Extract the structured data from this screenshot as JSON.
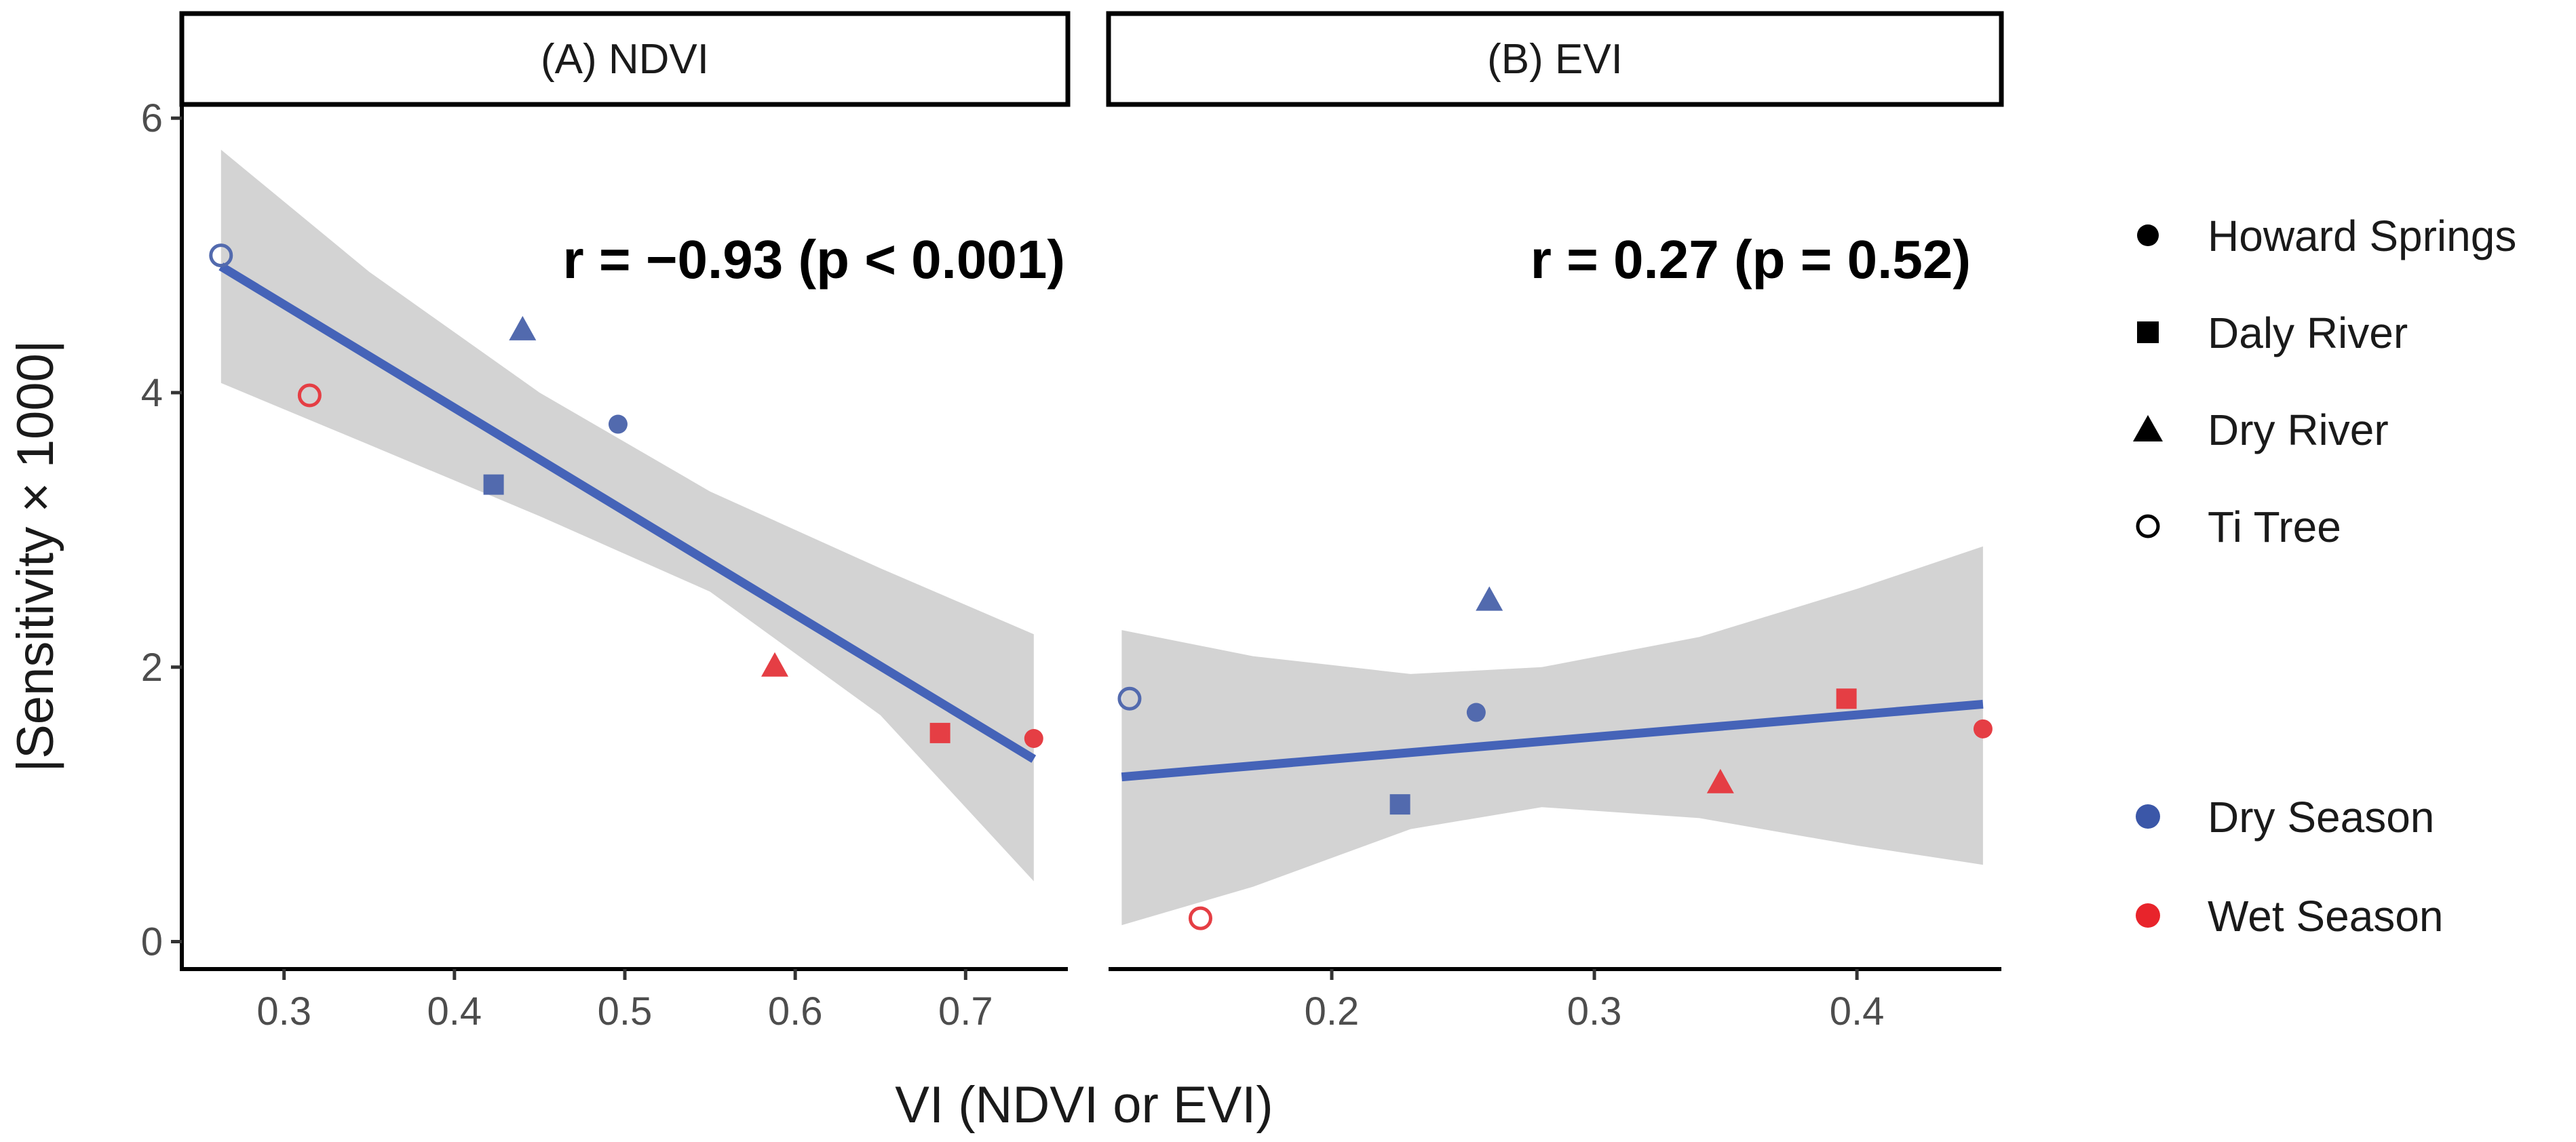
{
  "chart_data": {
    "type": "scatter",
    "x_title": "VI (NDVI or EVI)",
    "y_title": "|Sensitivity × 1000|",
    "colors": {
      "dry": "#3b57a8",
      "wet": "#e8242b",
      "fit": "#4563b8",
      "band": "#d3d3d3"
    },
    "legend": {
      "sites": [
        {
          "label": "Howard Springs",
          "shape": "circle"
        },
        {
          "label": "Daly River",
          "shape": "square"
        },
        {
          "label": "Dry River",
          "shape": "triangle"
        },
        {
          "label": "Ti Tree",
          "shape": "open-circle"
        }
      ],
      "seasons": [
        {
          "label": "Dry Season",
          "key": "dry"
        },
        {
          "label": "Wet Season",
          "key": "wet"
        }
      ]
    },
    "panels": [
      {
        "id": "ndvi",
        "title": "(A) NDVI",
        "annotation": "r = −0.93 (p < 0.001)",
        "xlim": [
          0.24,
          0.76
        ],
        "ylim": [
          -0.2,
          6.1
        ],
        "xticks": [
          0.3,
          0.4,
          0.5,
          0.6,
          0.7
        ],
        "xtick_labels": [
          "0.3",
          "0.4",
          "0.5",
          "0.6",
          "0.7"
        ],
        "yticks": [
          0,
          2,
          4,
          6
        ],
        "ytick_labels": [
          "0",
          "2",
          "4",
          "6"
        ],
        "points": [
          {
            "site": "Ti Tree",
            "shape": "open-circle",
            "season": "dry",
            "x": 0.263,
            "y": 5.0
          },
          {
            "site": "Ti Tree",
            "shape": "open-circle",
            "season": "wet",
            "x": 0.315,
            "y": 3.98
          },
          {
            "site": "Daly River",
            "shape": "square",
            "season": "dry",
            "x": 0.423,
            "y": 3.33
          },
          {
            "site": "Dry River",
            "shape": "triangle",
            "season": "dry",
            "x": 0.44,
            "y": 4.45
          },
          {
            "site": "Howard Springs",
            "shape": "circle",
            "season": "dry",
            "x": 0.496,
            "y": 3.77
          },
          {
            "site": "Dry River",
            "shape": "triangle",
            "season": "wet",
            "x": 0.588,
            "y": 2.0
          },
          {
            "site": "Daly River",
            "shape": "square",
            "season": "wet",
            "x": 0.685,
            "y": 1.52
          },
          {
            "site": "Howard Springs",
            "shape": "circle",
            "season": "wet",
            "x": 0.74,
            "y": 1.48
          }
        ],
        "fit": {
          "x": [
            0.263,
            0.74
          ],
          "y": [
            4.92,
            1.33
          ]
        },
        "band": {
          "x": [
            0.263,
            0.35,
            0.45,
            0.55,
            0.65,
            0.74
          ],
          "lower": [
            4.07,
            3.62,
            3.1,
            2.55,
            1.65,
            0.44
          ],
          "upper": [
            5.77,
            4.88,
            4.0,
            3.28,
            2.72,
            2.24
          ]
        }
      },
      {
        "id": "evi",
        "title": "(B) EVI",
        "annotation": "r = 0.27 (p = 0.52)",
        "xlim": [
          0.115,
          0.455
        ],
        "ylim": [
          -0.2,
          6.1
        ],
        "xticks": [
          0.2,
          0.3,
          0.4
        ],
        "xtick_labels": [
          "0.2",
          "0.3",
          "0.4"
        ],
        "yticks": [
          0,
          2,
          4,
          6
        ],
        "ytick_labels": [
          "0",
          "2",
          "4",
          "6"
        ],
        "points": [
          {
            "site": "Ti Tree",
            "shape": "open-circle",
            "season": "dry",
            "x": 0.123,
            "y": 1.77
          },
          {
            "site": "Ti Tree",
            "shape": "open-circle",
            "season": "wet",
            "x": 0.15,
            "y": 0.17
          },
          {
            "site": "Daly River",
            "shape": "square",
            "season": "dry",
            "x": 0.226,
            "y": 1.0
          },
          {
            "site": "Howard Springs",
            "shape": "circle",
            "season": "dry",
            "x": 0.255,
            "y": 1.67
          },
          {
            "site": "Dry River",
            "shape": "triangle",
            "season": "dry",
            "x": 0.26,
            "y": 2.48
          },
          {
            "site": "Dry River",
            "shape": "triangle",
            "season": "wet",
            "x": 0.348,
            "y": 1.15
          },
          {
            "site": "Daly River",
            "shape": "square",
            "season": "wet",
            "x": 0.396,
            "y": 1.77
          },
          {
            "site": "Howard Springs",
            "shape": "circle",
            "season": "wet",
            "x": 0.448,
            "y": 1.55
          }
        ],
        "fit": {
          "x": [
            0.12,
            0.448
          ],
          "y": [
            1.2,
            1.73
          ]
        },
        "band": {
          "x": [
            0.12,
            0.17,
            0.23,
            0.28,
            0.34,
            0.4,
            0.448
          ],
          "lower": [
            0.12,
            0.4,
            0.82,
            0.98,
            0.9,
            0.7,
            0.56
          ],
          "upper": [
            2.27,
            2.08,
            1.95,
            2.0,
            2.22,
            2.57,
            2.88
          ]
        }
      }
    ]
  }
}
